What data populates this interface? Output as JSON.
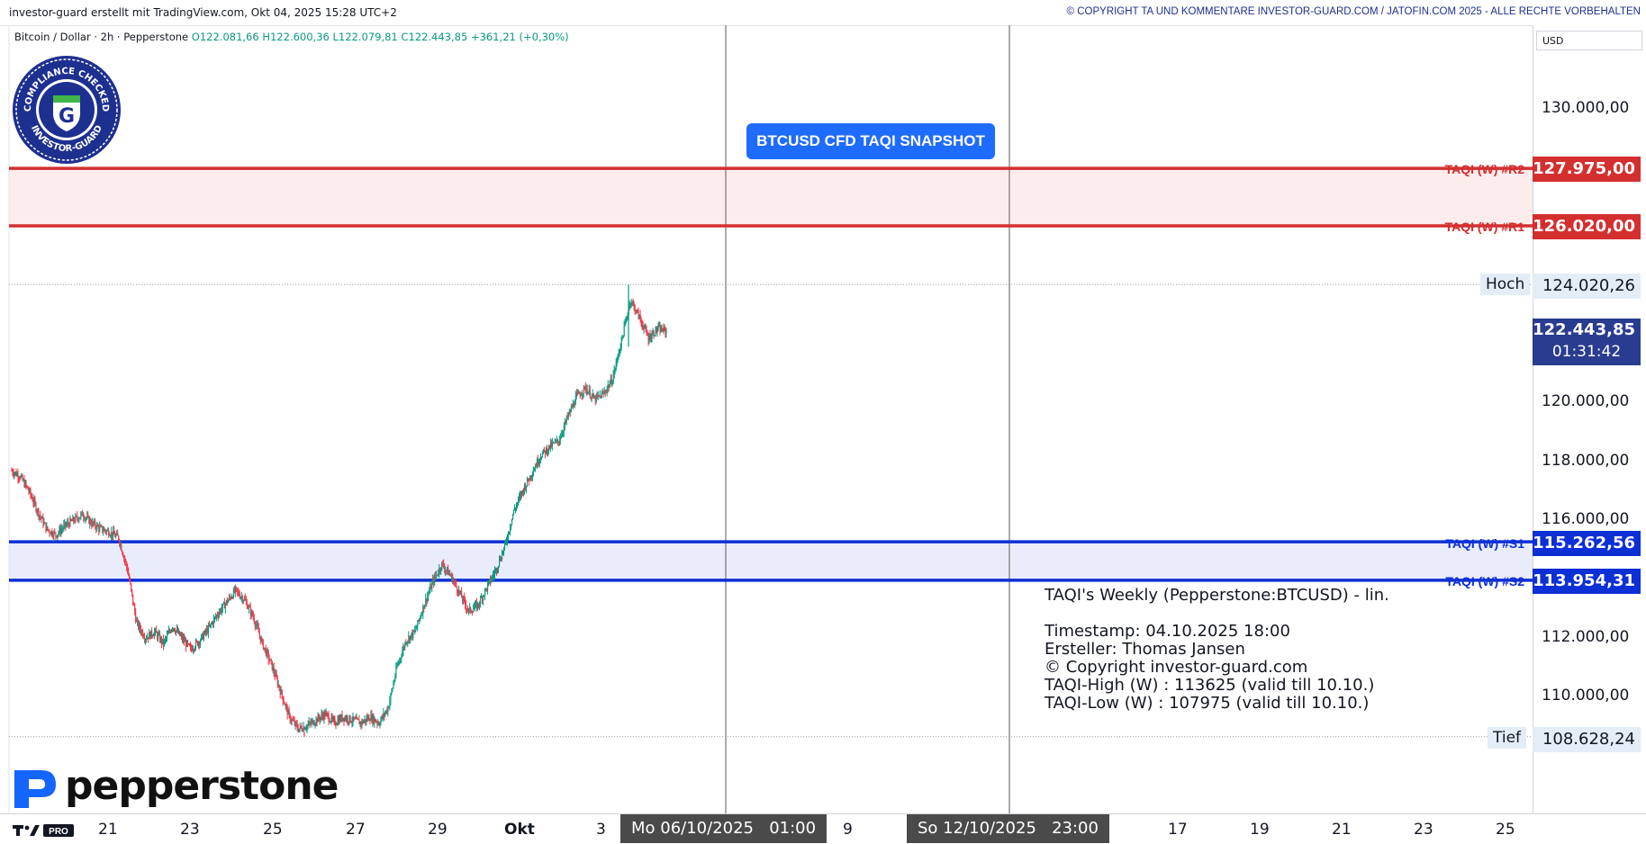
{
  "header": {
    "left_text": "investor-guard erstellt mit TradingView.com, Okt 04, 2025 15:28 UTC+2",
    "right_text": "© COPYRIGHT TA UND KOMMENTARE INVESTOR-GUARD.COM / JATOFIN.COM 2025 - ALLE RECHTE VORBEHALTEN"
  },
  "legend": {
    "symbol": "Bitcoin / Dollar · 2h · Pepperstone",
    "open": "O122.081,66",
    "high": "H122.600,36",
    "low": "L122.079,81",
    "close": "C122.443,85",
    "change": "+361,21 (+0,30%)"
  },
  "badge": {
    "text_top": "COMPLIANCE CHECKED",
    "text_bottom": "INVESTOR-GUARD",
    "letter": "G"
  },
  "snapshot_label": "BTCUSD CFD TAQI SNAPSHOT",
  "price_axis": {
    "currency": "USD",
    "ticks": [
      "130.000,00",
      "120.000,00",
      "118.000,00",
      "116.000,00",
      "112.000,00",
      "110.000,00"
    ]
  },
  "levels": {
    "r2": {
      "label": "TAQI (W) #R2",
      "price": "127.975,00",
      "value": 127975,
      "color": "#d32f2f"
    },
    "r1": {
      "label": "TAQI (W) #R1",
      "price": "126.020,00",
      "value": 126020,
      "color": "#d32f2f"
    },
    "s1": {
      "label": "TAQI (W) #S1",
      "price": "115.262,56",
      "value": 115262.56,
      "color": "#0d2fd6"
    },
    "s2": {
      "label": "TAQI (W) #S2",
      "price": "113.954,31",
      "value": 113954.31,
      "color": "#0d2fd6"
    }
  },
  "high_marker": {
    "label": "Hoch",
    "price": "124.020,26",
    "value": 124020.26
  },
  "low_marker": {
    "label": "Tief",
    "price": "108.628,24",
    "value": 108628.24
  },
  "current": {
    "price": "122.443,85",
    "countdown": "01:31:42",
    "value": 122443.85
  },
  "time_axis": {
    "ticks": [
      "21",
      "23",
      "25",
      "27",
      "29",
      "Okt",
      "3",
      "9",
      "17",
      "19",
      "21",
      "23",
      "25"
    ],
    "badge1": {
      "date": "Mo 06/10/2025",
      "time": "01:00"
    },
    "badge2": {
      "date": "So 12/10/2025",
      "time": "23:00"
    }
  },
  "info_block": {
    "title": "TAQI's Weekly (Pepperstone:BTCUSD) - lin.",
    "timestamp": "Timestamp: 04.10.2025 18:00",
    "author": "Ersteller: Thomas Jansen",
    "copyright": "© Copyright investor-guard.com",
    "taqi_high": "TAQI-High (W) : 113625 (valid till 10.10.)",
    "taqi_low": "TAQI-Low (W) : 107975 (valid till 10.10.)"
  },
  "broker_logo": "pepperstone",
  "platform_logo": "TV PRO",
  "chart_data": {
    "type": "candlestick",
    "timeframe": "2h",
    "close_path": [
      117700,
      117500,
      117000,
      116300,
      115700,
      115500,
      115800,
      116000,
      116200,
      115900,
      115700,
      115600,
      115400,
      114300,
      112500,
      112000,
      112200,
      111800,
      112400,
      112000,
      111600,
      111900,
      112300,
      112800,
      113200,
      113600,
      113300,
      112700,
      111800,
      111100,
      110200,
      109300,
      108900,
      109000,
      109200,
      109400,
      109100,
      109300,
      109200,
      109100,
      109300,
      109100,
      109600,
      111000,
      111900,
      112200,
      113100,
      113900,
      114500,
      114100,
      113500,
      112900,
      113100,
      113700,
      114300,
      115100,
      116300,
      117000,
      117600,
      118200,
      118500,
      118700,
      119500,
      120200,
      120500,
      120100,
      120300,
      120800,
      122100,
      123500,
      122900,
      122200,
      122500,
      122443.85
    ],
    "ylim": [
      107500,
      131300
    ]
  }
}
